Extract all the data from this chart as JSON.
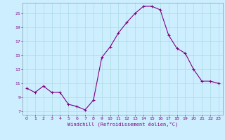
{
  "x": [
    0,
    1,
    2,
    3,
    4,
    5,
    6,
    7,
    8,
    9,
    10,
    11,
    12,
    13,
    14,
    15,
    16,
    17,
    18,
    19,
    20,
    21,
    22,
    23
  ],
  "y": [
    10.3,
    9.7,
    10.6,
    9.7,
    9.7,
    8.0,
    7.7,
    7.2,
    8.6,
    14.7,
    16.2,
    18.2,
    19.7,
    21.0,
    22.0,
    22.0,
    21.5,
    17.9,
    16.0,
    15.3,
    13.0,
    11.3,
    11.3,
    11.0
  ],
  "line_color": "#800080",
  "marker": "+",
  "marker_color": "#800080",
  "bg_color": "#cceeff",
  "grid_color": "#aadddd",
  "xlabel": "Windchill (Refroidissement éolien,°C)",
  "xlabel_color": "#800080",
  "tick_color": "#800080",
  "spine_color": "#8899aa",
  "ylim": [
    6.5,
    22.5
  ],
  "xlim": [
    -0.5,
    23.5
  ],
  "yticks": [
    7,
    9,
    11,
    13,
    15,
    17,
    19,
    21
  ],
  "xticks": [
    0,
    1,
    2,
    3,
    4,
    5,
    6,
    7,
    8,
    9,
    10,
    11,
    12,
    13,
    14,
    15,
    16,
    17,
    18,
    19,
    20,
    21,
    22,
    23
  ]
}
